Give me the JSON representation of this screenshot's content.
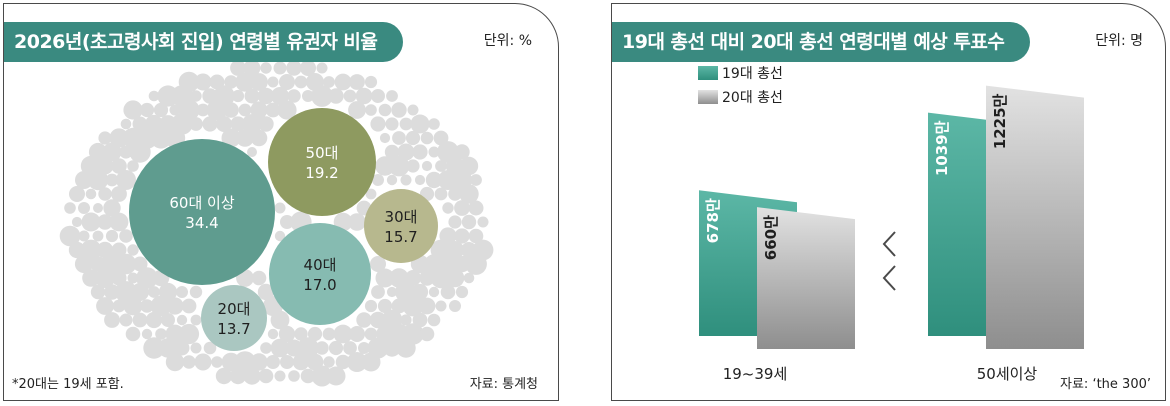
{
  "left_panel": {
    "title": "2026년(초고령사회 진입) 연령별 유권자 비율",
    "unit": "단위: %",
    "footnote": "*20대는 19세 포함.",
    "source": "자료: 통계청"
  },
  "right_panel": {
    "title": "19대 총선 대비 20대 총선 연령대별 예상 투표수",
    "unit": "단위: 명",
    "source": "자료: ‘the 300’"
  },
  "colors": {
    "title_bg": "#3a8a80",
    "age60": "#5f9c8f",
    "age50": "#8e9a60",
    "age40": "#86bbb1",
    "age30": "#b7b88e",
    "age20": "#aac7c1",
    "dots": "#dcdcdc",
    "bar19": "#2f8f7d",
    "bar20": "#b9b9b9",
    "arrow": "#4a4a4a"
  },
  "chart_data": [
    {
      "type": "bubble",
      "title": "2026년(초고령사회 진입) 연령별 유권자 비율",
      "unit": "%",
      "categories": [
        "60대 이상",
        "50대",
        "40대",
        "30대",
        "20대"
      ],
      "values": [
        34.4,
        19.2,
        17.0,
        15.7,
        13.7
      ],
      "value_labels": [
        "34.4",
        "19.2",
        "17.0",
        "15.7",
        "13.7"
      ]
    },
    {
      "type": "bar",
      "title": "19대 총선 대비 20대 총선 연령대별 예상 투표수",
      "unit": "명",
      "categories": [
        "19~39세",
        "50세이상"
      ],
      "series": [
        {
          "name": "19대 총선",
          "values": [
            678,
            1039
          ],
          "labels": [
            "678만",
            "1039만"
          ]
        },
        {
          "name": "20대 총선",
          "values": [
            660,
            1225
          ],
          "labels": [
            "660만",
            "1225만"
          ]
        }
      ],
      "legend": "top-left"
    }
  ]
}
